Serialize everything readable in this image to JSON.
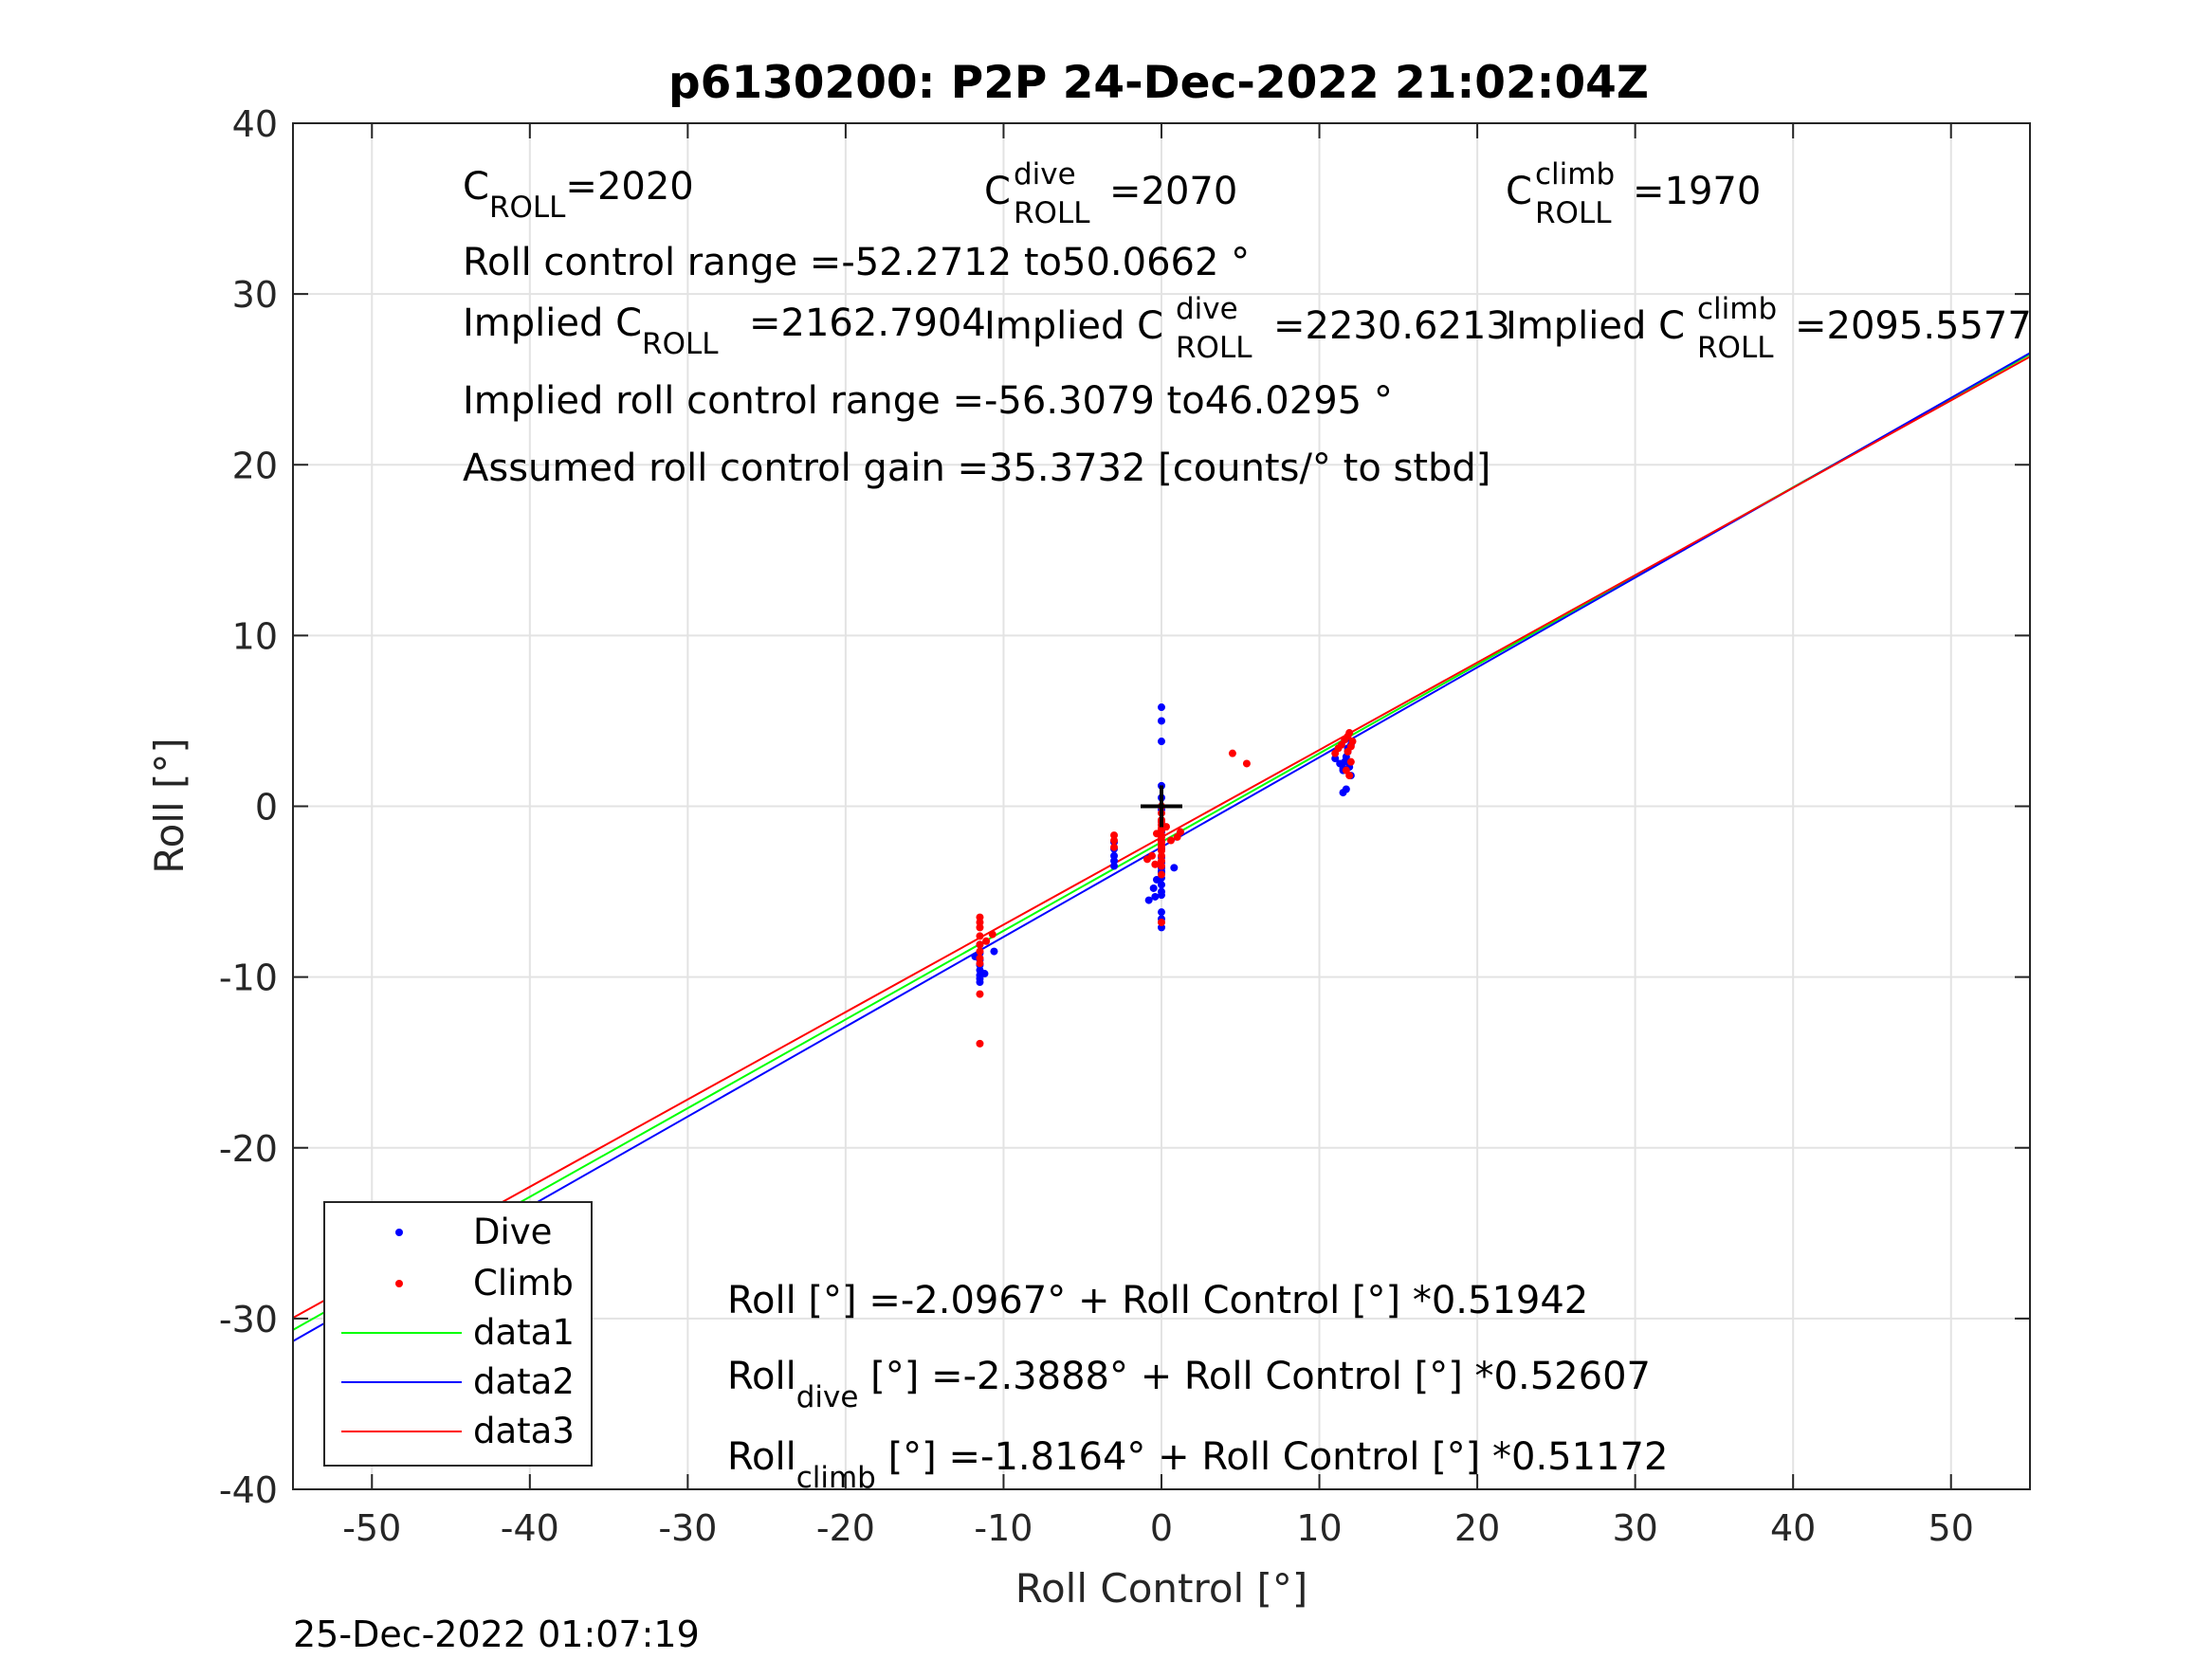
{
  "chart_data": {
    "type": "scatter",
    "title": "p6130200: P2P 24-Dec-2022 21:02:04Z",
    "xlabel": "Roll Control [°]",
    "ylabel": "Roll [°]",
    "xlim": [
      -55,
      55
    ],
    "ylim": [
      -40,
      40
    ],
    "xticks": [
      -50,
      -40,
      -30,
      -20,
      -10,
      0,
      10,
      20,
      30,
      40,
      50
    ],
    "yticks": [
      -40,
      -30,
      -20,
      -10,
      0,
      10,
      20,
      30,
      40
    ],
    "grid": true,
    "legend_position": "bottom-left",
    "series": [
      {
        "name": "Dive",
        "kind": "points",
        "color": "#0000ff",
        "x": [
          0,
          0,
          0,
          0,
          0,
          0,
          0,
          0,
          0,
          0,
          0,
          0,
          0,
          0,
          0,
          0,
          0,
          0,
          0,
          0,
          0,
          0,
          -0.3,
          -0.5,
          -0.4,
          -0.8,
          0.8,
          -3,
          -3,
          -3,
          -3,
          -3,
          -11.5,
          -11.5,
          -11.5,
          -11.5,
          -11.5,
          -11.5,
          -11.5,
          -11.5,
          -11.2,
          -10.6,
          -11.8,
          11,
          11.3,
          11.5,
          11.5,
          11.6,
          11.7,
          11.8,
          11.8,
          12,
          11.9,
          12,
          11.5,
          11.7
        ],
        "y": [
          5.8,
          5,
          3.8,
          1.2,
          0.5,
          -0.2,
          -0.9,
          -1.5,
          -2,
          -2.5,
          -3,
          -3.3,
          -3.6,
          -3.9,
          -4.2,
          -4.6,
          -5,
          -5.2,
          -6.2,
          -6.6,
          -7.1,
          -3.8,
          -4.3,
          -4.8,
          -5.3,
          -5.5,
          -3.6,
          -2.1,
          -2.5,
          -2.9,
          -3.2,
          -3.5,
          -8.1,
          -8.6,
          -9,
          -9.3,
          -9.6,
          -9.9,
          -10.1,
          -10.3,
          -9.8,
          -8.5,
          -8.8,
          2.8,
          2.5,
          2.2,
          2.1,
          2.6,
          2.9,
          3.2,
          3.4,
          3.6,
          2.3,
          1.8,
          0.8,
          1
        ],
        "label_dot_color": "#0000ff"
      },
      {
        "name": "Climb",
        "kind": "points",
        "color": "#ff0000",
        "x": [
          0,
          0,
          0,
          0,
          0,
          0,
          0,
          0,
          0,
          0,
          0,
          0,
          0,
          0,
          0,
          0,
          0,
          0,
          0,
          -0.3,
          -0.6,
          -0.9,
          0.3,
          0.6,
          -0.4,
          1.2,
          1,
          4.5,
          5.4,
          -3,
          -3,
          -3,
          -11.5,
          -11.5,
          -11.5,
          -11.5,
          -11.5,
          -11.5,
          -11.5,
          -11.5,
          -11.5,
          -11.5,
          -11.1,
          -10.7,
          11,
          11.2,
          11.4,
          11.6,
          11.8,
          11.9,
          12,
          12.1,
          11.7,
          11.9,
          12,
          11.8
        ],
        "y": [
          0,
          -0.4,
          -0.8,
          -1.1,
          -1.4,
          -1.7,
          -2,
          -2.3,
          -2.6,
          -2.9,
          -3.2,
          -3.5,
          -1.8,
          -2.1,
          -2.4,
          -4,
          -0.9,
          -1.3,
          -6.8,
          -1.6,
          -2.9,
          -3.1,
          -1.2,
          -2,
          -3.4,
          -1.5,
          -1.8,
          3.1,
          2.5,
          -1.7,
          -2,
          -2.4,
          -6.5,
          -6.8,
          -7.1,
          -7.6,
          -8.1,
          -8.5,
          -8.9,
          -9.2,
          -11,
          -13.9,
          -7.9,
          -7.5,
          3.1,
          3.4,
          3.6,
          3.9,
          4.1,
          4.3,
          3.5,
          3.8,
          2.1,
          1.8,
          2.6,
          3.2
        ]
      },
      {
        "name": "data1",
        "kind": "line",
        "color": "#00ff00",
        "intercept": -2.0967,
        "slope": 0.51942
      },
      {
        "name": "data2",
        "kind": "line",
        "color": "#0000ff",
        "intercept": -2.3888,
        "slope": 0.52607
      },
      {
        "name": "data3",
        "kind": "line",
        "color": "#ff0000",
        "intercept": -1.8164,
        "slope": 0.51172
      }
    ],
    "center_marker": {
      "x": 0,
      "y": 0,
      "color": "#000000"
    },
    "annotations": {
      "c_roll": {
        "main": "C",
        "sub": "ROLL",
        "rest": "=2020"
      },
      "c_roll_dive": {
        "main": "C",
        "sup": "dive",
        "sub": "ROLL",
        "rest": "=2070"
      },
      "c_roll_climb": {
        "main": "C",
        "sup": "climb",
        "sub": "ROLL",
        "rest": "=1970"
      },
      "roll_range": "Roll control range =-52.2712 to50.0662 °",
      "implied_c_roll": {
        "pre": "Implied C",
        "sub": "ROLL",
        "rest": "=2162.7904"
      },
      "implied_c_roll_dive": {
        "pre": "Implied C",
        "sup": "dive",
        "sub": "ROLL",
        "rest": "=2230.6213"
      },
      "implied_c_roll_climb": {
        "pre": "Implied C",
        "sup": "climb",
        "sub": "ROLL",
        "rest": "=2095.5577"
      },
      "implied_range": "Implied roll control range =-56.3079 to46.0295 °",
      "assumed_gain": "Assumed roll control gain =35.3732 [counts/° to stbd]",
      "fit_all": "Roll [°] =-2.0967° + Roll Control [°] *0.51942",
      "fit_dive": {
        "pre": "Roll",
        "sub": "dive",
        "rest": " [°] =-2.3888° + Roll Control [°] *0.52607"
      },
      "fit_climb": {
        "pre": "Roll",
        "sub": "climb",
        "rest": " [°] =-1.8164° + Roll Control [°] *0.51172"
      }
    }
  },
  "footer_timestamp": "25-Dec-2022 01:07:19"
}
